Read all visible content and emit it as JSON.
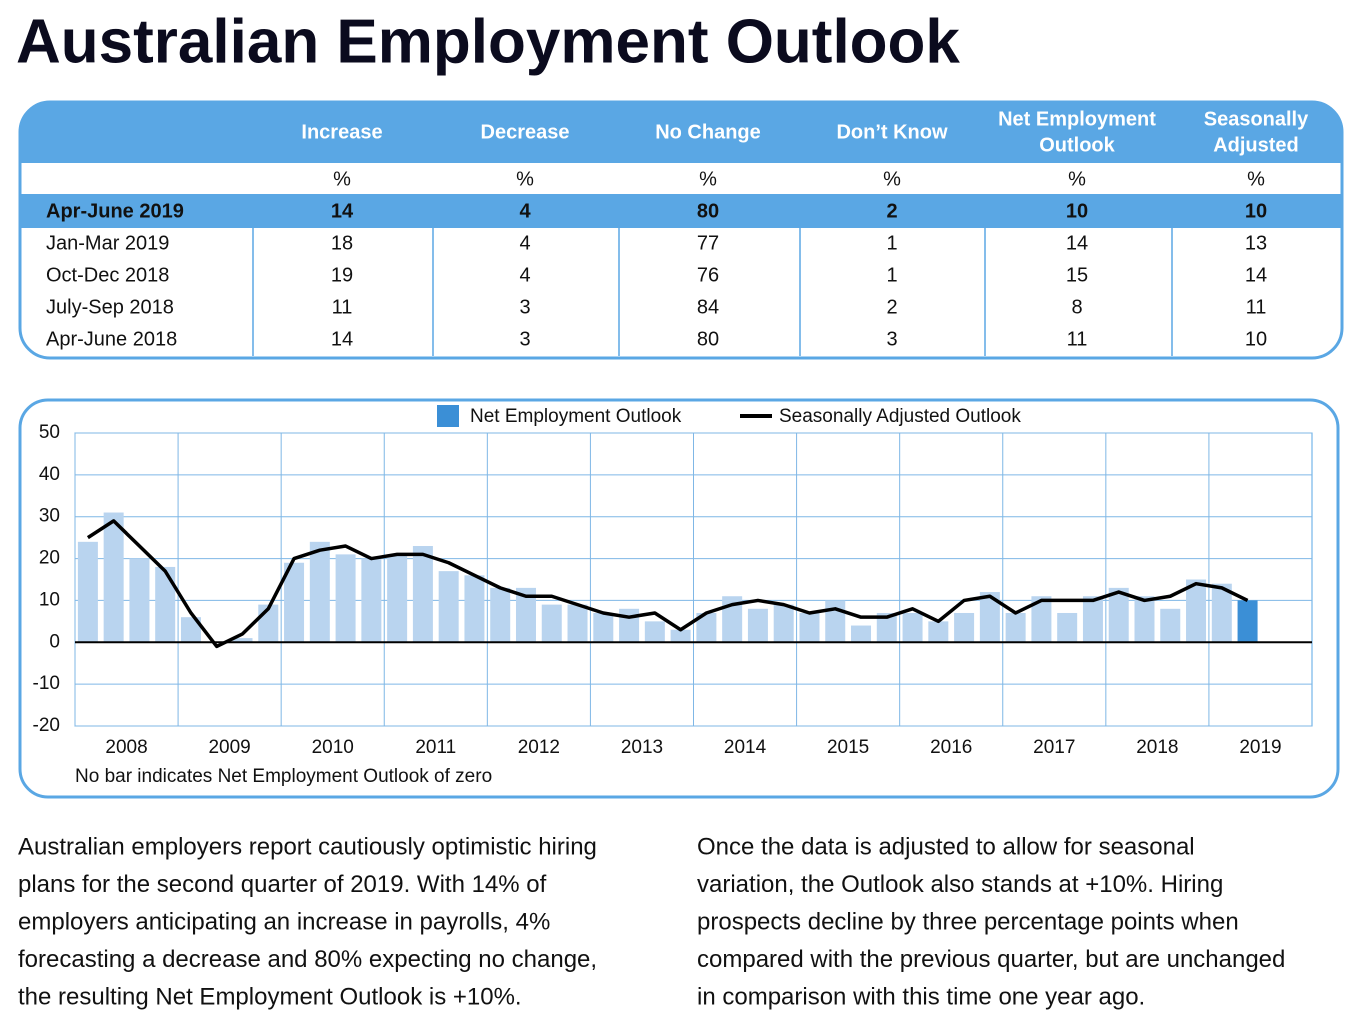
{
  "header": {
    "title": "Australian Employment Outlook"
  },
  "table": {
    "headers": [
      [
        "Increase"
      ],
      [
        "Decrease"
      ],
      [
        "No Change"
      ],
      [
        "Don’t Know"
      ],
      [
        "Net Employment",
        "Outlook"
      ],
      [
        "Seasonally",
        "Adjusted"
      ]
    ],
    "units": [
      "%",
      "%",
      "%",
      "%",
      "%",
      "%"
    ],
    "highlight_row": 0,
    "rows": [
      {
        "label": "Apr-June 2019",
        "values": [
          14,
          4,
          80,
          2,
          10,
          10
        ]
      },
      {
        "label": "Jan-Mar 2019",
        "values": [
          18,
          4,
          77,
          1,
          14,
          13
        ]
      },
      {
        "label": "Oct-Dec 2018",
        "values": [
          19,
          4,
          76,
          1,
          15,
          14
        ]
      },
      {
        "label": "July-Sep 2018",
        "values": [
          11,
          3,
          84,
          2,
          8,
          11
        ]
      },
      {
        "label": "Apr-June 2018",
        "values": [
          14,
          3,
          80,
          3,
          11,
          10
        ]
      }
    ]
  },
  "chart_data": {
    "type": "bar_line",
    "years": [
      "2008",
      "2009",
      "2010",
      "2011",
      "2012",
      "2013",
      "2014",
      "2015",
      "2016",
      "2017",
      "2018",
      "2019"
    ],
    "ylim": [
      -20,
      50
    ],
    "yticks": [
      -20,
      -10,
      0,
      10,
      20,
      30,
      40,
      50
    ],
    "grid": true,
    "series": [
      {
        "name": "Net Employment Outlook",
        "type": "bar",
        "color": "#b9d4ef",
        "highlight_color": "#3b8fd6",
        "values": [
          24,
          31,
          20,
          18,
          6,
          0,
          1,
          9,
          19,
          24,
          21,
          20,
          21,
          23,
          17,
          16,
          13,
          13,
          9,
          9,
          7,
          8,
          5,
          3,
          7,
          11,
          8,
          9,
          7,
          10,
          4,
          7,
          7,
          5,
          7,
          12,
          7,
          11,
          7,
          11,
          13,
          11,
          8,
          15,
          14,
          10
        ]
      },
      {
        "name": "Seasonally Adjusted Outlook",
        "type": "line",
        "color": "#000000",
        "values": [
          25,
          29,
          23,
          17,
          7,
          -1,
          2,
          8,
          20,
          22,
          23,
          20,
          21,
          21,
          19,
          16,
          13,
          11,
          11,
          9,
          7,
          6,
          7,
          3,
          7,
          9,
          10,
          9,
          7,
          8,
          6,
          6,
          8,
          5,
          10,
          11,
          7,
          10,
          10,
          10,
          12,
          10,
          11,
          14,
          13,
          10
        ]
      }
    ],
    "note": "No bar indicates Net Employment Outlook of zero"
  },
  "paragraphs": [
    [
      "Australian employers report cautiously optimistic hiring",
      "plans for the second quarter of 2019. With 14% of",
      "employers anticipating an increase in payrolls, 4%",
      "forecasting a decrease and 80% expecting no change,",
      "the resulting Net Employment Outlook is +10%."
    ],
    [
      "Once the data is adjusted to allow for seasonal",
      "variation, the Outlook also stands at +10%. Hiring",
      "prospects decline by three percentage points when",
      "compared with the previous quarter, but are unchanged",
      "in comparison with this time one year ago."
    ]
  ]
}
